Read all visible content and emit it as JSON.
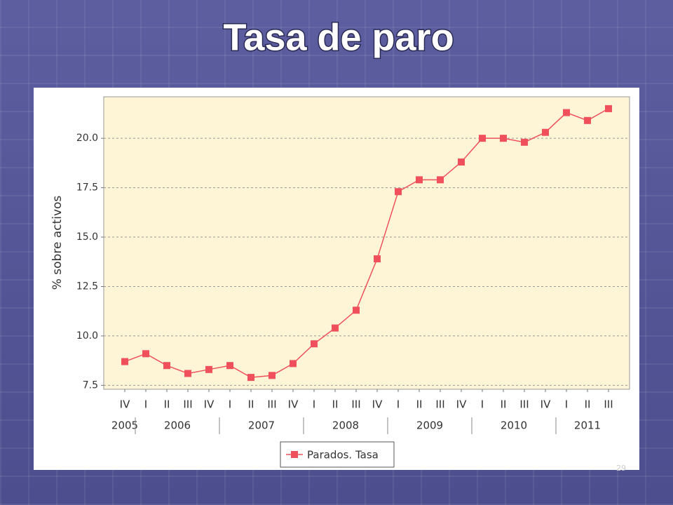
{
  "chart_data": {
    "type": "line",
    "title": "Tasa de paro",
    "y_label": "% sobre activos",
    "categories": [
      "IV",
      "I",
      "II",
      "III",
      "IV",
      "I",
      "II",
      "III",
      "IV",
      "I",
      "II",
      "III",
      "IV",
      "I",
      "II",
      "III",
      "IV",
      "I",
      "II",
      "III",
      "IV",
      "I",
      "II",
      "III"
    ],
    "years": [
      {
        "label": "2005",
        "quarters": 1
      },
      {
        "label": "2006",
        "quarters": 4
      },
      {
        "label": "2007",
        "quarters": 4
      },
      {
        "label": "2008",
        "quarters": 4
      },
      {
        "label": "2009",
        "quarters": 4
      },
      {
        "label": "2010",
        "quarters": 4
      },
      {
        "label": "2011",
        "quarters": 3
      }
    ],
    "series": [
      {
        "name": "Parados. Tasa",
        "color": "#f0505c",
        "values": [
          8.7,
          9.1,
          8.5,
          8.1,
          8.3,
          8.5,
          7.9,
          8.0,
          8.6,
          9.6,
          10.4,
          11.3,
          13.9,
          17.3,
          17.9,
          17.9,
          18.8,
          20.0,
          20.0,
          19.8,
          20.3,
          21.3,
          20.9,
          21.5
        ]
      }
    ],
    "ylim": [
      7.3,
      22.1
    ],
    "yticks": [
      7.5,
      {
        "value": 10,
        "label": "10.0"
      },
      12.5,
      {
        "value": 15,
        "label": "15.0"
      },
      17.5,
      {
        "value": 20,
        "label": "20.0"
      }
    ],
    "grid": true,
    "legend": "bottom"
  },
  "page_number": "29"
}
